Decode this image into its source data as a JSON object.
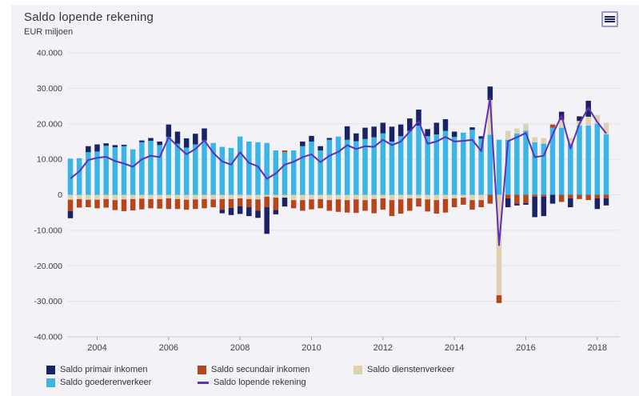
{
  "panel": {
    "title": "Saldo lopende rekening",
    "subtitle": "EUR miljoen"
  },
  "colors": {
    "background_panel": "#f2f2f7",
    "page": "#ffffff",
    "grid": "#e3e3eb",
    "axis_line": "#c9c9d4",
    "tick_text": "#3d3d48",
    "primair": "#1b2265",
    "goederen": "#3ab5e6",
    "secundair": "#b5451b",
    "diensten": "#ded2ae",
    "lopende_line": "#5e2fb8"
  },
  "axes": {
    "y": {
      "labels": [
        "40.000",
        "30.000",
        "20.000",
        "10.000",
        "0",
        "-10.000",
        "-20.000",
        "-30.000",
        "-40.000"
      ],
      "values": [
        40000,
        30000,
        20000,
        10000,
        0,
        -10000,
        -20000,
        -30000,
        -40000
      ]
    },
    "x": {
      "ticks": [
        {
          "label": "2004",
          "index": 3
        },
        {
          "label": "2006",
          "index": 11
        },
        {
          "label": "2008",
          "index": 19
        },
        {
          "label": "2010",
          "index": 27
        },
        {
          "label": "2012",
          "index": 35
        },
        {
          "label": "2014",
          "index": 43
        },
        {
          "label": "2016",
          "index": 51
        },
        {
          "label": "2018",
          "index": 59
        }
      ]
    }
  },
  "legend": {
    "items": [
      {
        "id": "primair",
        "label": "Saldo primair inkomen",
        "color_key": "primair",
        "type": "box",
        "row": 1,
        "col": 1
      },
      {
        "id": "secundair",
        "label": "Saldo secundair inkomen",
        "color_key": "secundair",
        "type": "box",
        "row": 1,
        "col": 2
      },
      {
        "id": "diensten",
        "label": "Saldo dienstenverkeer",
        "color_key": "diensten",
        "type": "box",
        "row": 1,
        "col": 3
      },
      {
        "id": "goederen",
        "label": "Saldo goederenverkeer",
        "color_key": "goederen",
        "type": "box",
        "row": 2,
        "col": 1
      },
      {
        "id": "lopende",
        "label": "Saldo lopende rekening",
        "color_key": "lopende_line",
        "type": "line",
        "row": 2,
        "col": 2
      }
    ]
  },
  "chart_data": {
    "type": "bar",
    "stacked": true,
    "title": "Saldo lopende rekening",
    "xlabel": "",
    "ylabel": "EUR miljoen",
    "ylim": [
      -40000,
      40000
    ],
    "grid": true,
    "legend_position": "bottom",
    "categories": [
      "2003 Q2",
      "2003 Q3",
      "2003 Q4",
      "2004 Q1",
      "2004 Q2",
      "2004 Q3",
      "2004 Q4",
      "2005 Q1",
      "2005 Q2",
      "2005 Q3",
      "2005 Q4",
      "2006 Q1",
      "2006 Q2",
      "2006 Q3",
      "2006 Q4",
      "2007 Q1",
      "2007 Q2",
      "2007 Q3",
      "2007 Q4",
      "2008 Q1",
      "2008 Q2",
      "2008 Q3",
      "2008 Q4",
      "2009 Q1",
      "2009 Q2",
      "2009 Q3",
      "2009 Q4",
      "2010 Q1",
      "2010 Q2",
      "2010 Q3",
      "2010 Q4",
      "2011 Q1",
      "2011 Q2",
      "2011 Q3",
      "2011 Q4",
      "2012 Q1",
      "2012 Q2",
      "2012 Q3",
      "2012 Q4",
      "2013 Q1",
      "2013 Q2",
      "2013 Q3",
      "2013 Q4",
      "2014 Q1",
      "2014 Q2",
      "2014 Q3",
      "2014 Q4",
      "2015 Q1",
      "2015 Q2",
      "2015 Q3",
      "2015 Q4",
      "2016 Q1",
      "2016 Q2",
      "2016 Q3",
      "2016 Q4",
      "2017 Q1",
      "2017 Q2",
      "2017 Q3",
      "2017 Q4",
      "2018 Q1",
      "2018 Q2"
    ],
    "series": [
      {
        "name": "Saldo goederenverkeer",
        "color_key": "goederen",
        "values": [
          10200,
          10300,
          12000,
          12200,
          13800,
          13400,
          13700,
          12800,
          14800,
          15200,
          14000,
          16300,
          14400,
          13300,
          14200,
          15300,
          14600,
          13500,
          13200,
          16400,
          15000,
          14800,
          14600,
          12500,
          12000,
          12500,
          13700,
          15000,
          12500,
          15500,
          16400,
          15500,
          15100,
          15700,
          16200,
          17300,
          15000,
          16500,
          18000,
          19500,
          16500,
          17000,
          18000,
          16300,
          17500,
          18300,
          15800,
          16900,
          15500,
          15500,
          17300,
          18100,
          14800,
          14400,
          18900,
          18900,
          14500,
          19500,
          19500,
          20000,
          17000
        ]
      },
      {
        "name": "Saldo dienstenverkeer",
        "color_key": "diensten",
        "values": [
          -1400,
          -1200,
          -1400,
          -1400,
          -1200,
          -1500,
          -1300,
          -1200,
          -1100,
          -1200,
          -1200,
          -1000,
          -1200,
          -1400,
          -1300,
          -1200,
          -1300,
          -1200,
          -1200,
          -1000,
          -1200,
          -1300,
          -500,
          -800,
          -800,
          -1500,
          -1500,
          -1300,
          -1200,
          -1500,
          -1300,
          -1500,
          -1300,
          -1500,
          -1200,
          -1000,
          -1500,
          -1300,
          -1000,
          -1000,
          -1300,
          -1500,
          -1200,
          -1000,
          -800,
          -1500,
          -1500,
          9800,
          -28300,
          2500,
          1400,
          1900,
          1400,
          1600,
          0,
          2200,
          1500,
          1300,
          2500,
          2500,
          3300
        ]
      },
      {
        "name": "Saldo primair inkomen",
        "color_key": "primair",
        "values": [
          -2000,
          0,
          1700,
          2000,
          700,
          600,
          400,
          0,
          500,
          800,
          1000,
          3500,
          3400,
          2600,
          3000,
          3400,
          0,
          -1000,
          -2000,
          -2200,
          -2500,
          -2000,
          -7500,
          -1200,
          -2500,
          0,
          1300,
          1600,
          1200,
          500,
          0,
          3800,
          2200,
          3200,
          3000,
          3000,
          4200,
          3300,
          3500,
          4500,
          2000,
          3300,
          3300,
          1500,
          0,
          700,
          700,
          3800,
          0,
          -2500,
          -500,
          -500,
          -5800,
          -5500,
          -2500,
          2300,
          -2500,
          1300,
          4500,
          -3000,
          -2000
        ]
      },
      {
        "name": "Saldo secundair inkomen",
        "color_key": "secundair",
        "values": [
          -3200,
          -2400,
          -2100,
          -2400,
          -2400,
          -2800,
          -3300,
          -3200,
          -3000,
          -2600,
          -2700,
          -3000,
          -2800,
          -2800,
          -2700,
          -2600,
          -2200,
          -3000,
          -2500,
          -2200,
          -2300,
          -3200,
          -3000,
          -3500,
          500,
          -2300,
          -3000,
          -2800,
          -2600,
          -3000,
          -3500,
          -3500,
          -3800,
          -3000,
          -4000,
          -3200,
          -4500,
          -4000,
          -3500,
          -2300,
          -3400,
          -3800,
          -3800,
          -2500,
          -2000,
          -2700,
          -2000,
          -2500,
          -2200,
          -1000,
          -2500,
          -2300,
          -500,
          -500,
          900,
          -2000,
          -1000,
          -1200,
          -1500,
          -1000,
          -1000
        ]
      }
    ],
    "line_series": {
      "name": "Saldo lopende rekening",
      "color_key": "lopende_line",
      "values": [
        4600,
        6600,
        9800,
        10400,
        10700,
        9500,
        8800,
        7900,
        10000,
        11000,
        10600,
        16200,
        13700,
        11400,
        12900,
        15300,
        11800,
        9400,
        8500,
        12000,
        9000,
        8000,
        4500,
        6000,
        8500,
        9300,
        10600,
        11400,
        9200,
        11000,
        12100,
        14000,
        12900,
        13700,
        13500,
        15500,
        14000,
        15000,
        17800,
        20700,
        14400,
        15000,
        16300,
        15000,
        15200,
        15500,
        12300,
        27200,
        -14200,
        15100,
        16200,
        17400,
        10600,
        11000,
        17000,
        22300,
        13000,
        20000,
        24500,
        20500,
        17300
      ]
    }
  }
}
